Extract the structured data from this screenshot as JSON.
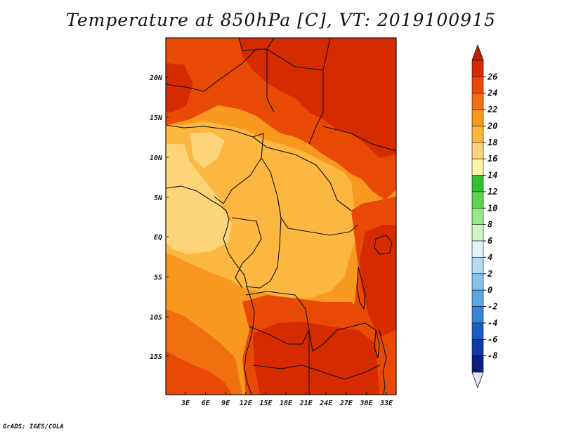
{
  "title": "Temperature at 850hPa [C], VT: 2019100915",
  "credit": "GrADS: IGES/COLA",
  "map": {
    "lat_labels": [
      "20N",
      "15N",
      "10N",
      "5N",
      "EQ",
      "5S",
      "10S",
      "15S"
    ],
    "lon_labels": [
      "3E",
      "6E",
      "9E",
      "12E",
      "15E",
      "18E",
      "21E",
      "24E",
      "27E",
      "30E",
      "33E"
    ],
    "lon_range": [
      0,
      35
    ],
    "lat_range": [
      -20,
      24.5
    ]
  },
  "colorbar": {
    "labels": [
      "26",
      "24",
      "22",
      "20",
      "18",
      "16",
      "14",
      "12",
      "10",
      "8",
      "6",
      "4",
      "2",
      "0",
      "-2",
      "-4",
      "-6",
      "-8"
    ],
    "colors": [
      "#d62a00",
      "#e84a05",
      "#f06f10",
      "#f8981f",
      "#fbb740",
      "#fdd47a",
      "#fcf3a8",
      "#31c033",
      "#5bd452",
      "#9ae88a",
      "#cff7c6",
      "#e3f3fa",
      "#b4daf4",
      "#89c1ec",
      "#5fa5e1",
      "#3784d3",
      "#1b5ec2",
      "#0f3aa5",
      "#0a1f7a"
    ],
    "top_cap_color": "#c41c00",
    "bottom_cap_color": "#e6e6ff"
  }
}
